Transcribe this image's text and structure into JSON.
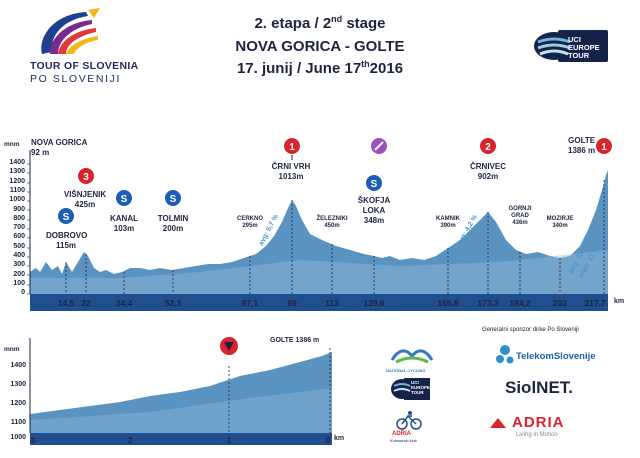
{
  "header": {
    "logo_line1": "TOUR OF SLOVENIA",
    "logo_line2": "PO SLOVENIJI",
    "stage_line": "2. etapa / 2",
    "stage_sup": "nd",
    "stage_suffix": " stage",
    "route": "NOVA GORICA - GOLTE",
    "date_prefix": "17. junij / June 17",
    "date_sup": "th",
    "date_suffix": "2016",
    "uci_logo": [
      "UCI",
      "EUROPE",
      "TOUR"
    ]
  },
  "colors": {
    "profile": "#5b93c0",
    "profile_light": "#8fbbdb",
    "axis_bar": "#1f4f8e",
    "dark": "#1e2440",
    "red": "#d9232d"
  },
  "profile": {
    "unit": "mnm",
    "y_ticks": [
      "1400",
      "1300",
      "1200",
      "1100",
      "1000",
      "900",
      "800",
      "700",
      "600",
      "500",
      "400",
      "300",
      "200",
      "100",
      "0"
    ],
    "km_unit": "km",
    "km_ticks": [
      "14,5",
      "22",
      "34,4",
      "52,3",
      "87,1",
      "99",
      "113",
      "129,6",
      "155,8",
      "173,3",
      "184,2",
      "202",
      "217,7"
    ],
    "start": {
      "name": "NOVA GORICA",
      "alt": "92 m"
    },
    "finish": {
      "name": "GOLTE",
      "alt": "1386 m"
    },
    "places": [
      {
        "name": "DOBROVO",
        "alt": "115m"
      },
      {
        "name": "VIŠNJENIK",
        "alt": "425m"
      },
      {
        "name": "KANAL",
        "alt": "103m"
      },
      {
        "name": "TOLMIN",
        "alt": "200m"
      },
      {
        "name": "CERKNO",
        "alt": "295m"
      },
      {
        "name": "ČRNI VRH",
        "alt": "1013m"
      },
      {
        "name": "ŽELEZNIKI",
        "alt": "450m"
      },
      {
        "name": "ŠKOFJA",
        "name2": "LOKA",
        "alt": "348m"
      },
      {
        "name": "KAMNIK",
        "alt": "390m"
      },
      {
        "name": "ČRNIVEC",
        "alt": "902m"
      },
      {
        "name": "GORNJI",
        "name2": "GRAD",
        "alt": "436m"
      },
      {
        "name": "MOZIRJE",
        "alt": "340m"
      }
    ],
    "gradients": [
      "avg: 5,7 %",
      "avg: 4,2 %",
      "avg: 7,3 %",
      "max: 23 %"
    ]
  },
  "finale": {
    "unit": "mnm",
    "y_ticks": [
      "1400",
      "1300",
      "1200",
      "1100",
      "1000"
    ],
    "km_ticks": [
      "3",
      "2",
      "1",
      "0"
    ],
    "km_unit": "km",
    "finish_label": "GOLTE 1386 m"
  },
  "sponsors": {
    "title": "Generalni sponzor dirke Po Sloveniji",
    "telekom": "TelekomSlovenije",
    "siol": "SiolNET.",
    "adria": "ADRIA",
    "adria_tag": "Living in Motion",
    "club_name": "ADRIA",
    "club_sub": "Kolesarski klub",
    "uci_small": [
      "UCI",
      "EUROPE",
      "TOUR"
    ],
    "ns_small": "NATIONAL CYCLING"
  }
}
